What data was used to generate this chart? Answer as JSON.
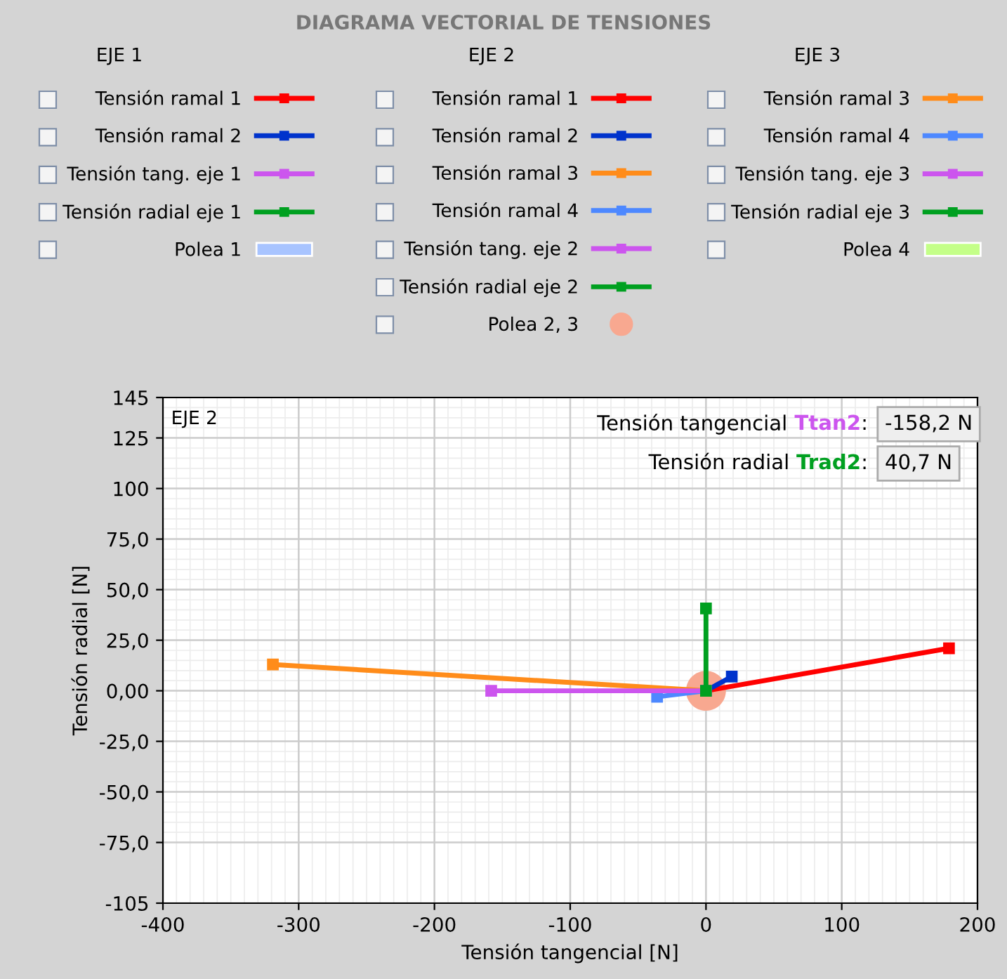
{
  "chart_data": {
    "type": "line",
    "title": "DIAGRAMA VECTORIAL DE TENSIONES",
    "xlabel": "Tensión tangencial [N]",
    "ylabel": "Tensión radial [N]",
    "xlim": [
      -400,
      200
    ],
    "xticks": [
      -400,
      -300,
      -200,
      -100,
      0,
      100,
      200
    ],
    "ylim": [
      -105,
      145
    ],
    "yticks": [
      -105,
      {
        "value": -75,
        "label": "-75,0"
      },
      {
        "value": -50,
        "label": "-50,0"
      },
      {
        "value": -25,
        "label": "-25,0"
      },
      {
        "value": 0,
        "label": "0,00"
      },
      {
        "value": 25,
        "label": "25,0"
      },
      {
        "value": 50,
        "label": "50,0"
      },
      {
        "value": 75,
        "label": "75,0"
      },
      100,
      125,
      145
    ],
    "grid": true,
    "legend": "top",
    "marker": "square",
    "line_style": "solid",
    "annotations": [
      "EJE 1",
      "EJE 2",
      "EJE 3",
      "EJE 2",
      "Tensión tangencial ",
      "Ttan2",
      ":",
      "-158,2 N",
      "Tensión radial ",
      "Trad2",
      ":",
      "40,7 N"
    ],
    "series": [
      {
        "name": "Tensión ramal 1",
        "color": "#ff0000"
      },
      {
        "name": "Tensión ramal 2",
        "color": "#0033cc"
      },
      {
        "name": "Tensión tang. eje 1",
        "color": "#cc55ee"
      },
      {
        "name": "Tensión radial eje 1",
        "color": "#00a020"
      },
      {
        "name": "Polea 1",
        "type": "scatter",
        "color": "#a8c4ff"
      },
      {
        "name": "Tensión ramal 1",
        "color": "#ff0000",
        "x": [
          0,
          179
        ],
        "values": [
          0,
          21
        ]
      },
      {
        "name": "Tensión ramal 2",
        "color": "#0033cc",
        "x": [
          0,
          19
        ],
        "values": [
          0,
          7
        ]
      },
      {
        "name": "Tensión ramal 3",
        "color": "#ff8c1a",
        "x": [
          0,
          -319
        ],
        "values": [
          0,
          13
        ]
      },
      {
        "name": "Tensión ramal 4",
        "color": "#4d88ff",
        "x": [
          0,
          -36
        ],
        "values": [
          0,
          -3
        ]
      },
      {
        "name": "Tensión tang. eje 2",
        "color": "#cc55ee",
        "x": [
          0,
          -158.2
        ],
        "values": [
          0,
          0
        ]
      },
      {
        "name": "Tensión radial eje 2",
        "color": "#00a020",
        "x": [
          0,
          0
        ],
        "values": [
          0,
          40.7
        ]
      },
      {
        "name": "Polea 2, 3",
        "type": "scatter",
        "marker": "circle",
        "color": "#f8a890",
        "x": [
          0
        ],
        "values": [
          0
        ]
      },
      {
        "name": "Tensión ramal 3",
        "color": "#ff8c1a"
      },
      {
        "name": "Tensión ramal 4",
        "color": "#4d88ff"
      },
      {
        "name": "Tensión tang. eje 3",
        "color": "#cc55ee"
      },
      {
        "name": "Tensión radial eje 3",
        "color": "#00a020"
      },
      {
        "name": "Polea 4",
        "type": "scatter",
        "color": "#c4ff88"
      }
    ]
  }
}
